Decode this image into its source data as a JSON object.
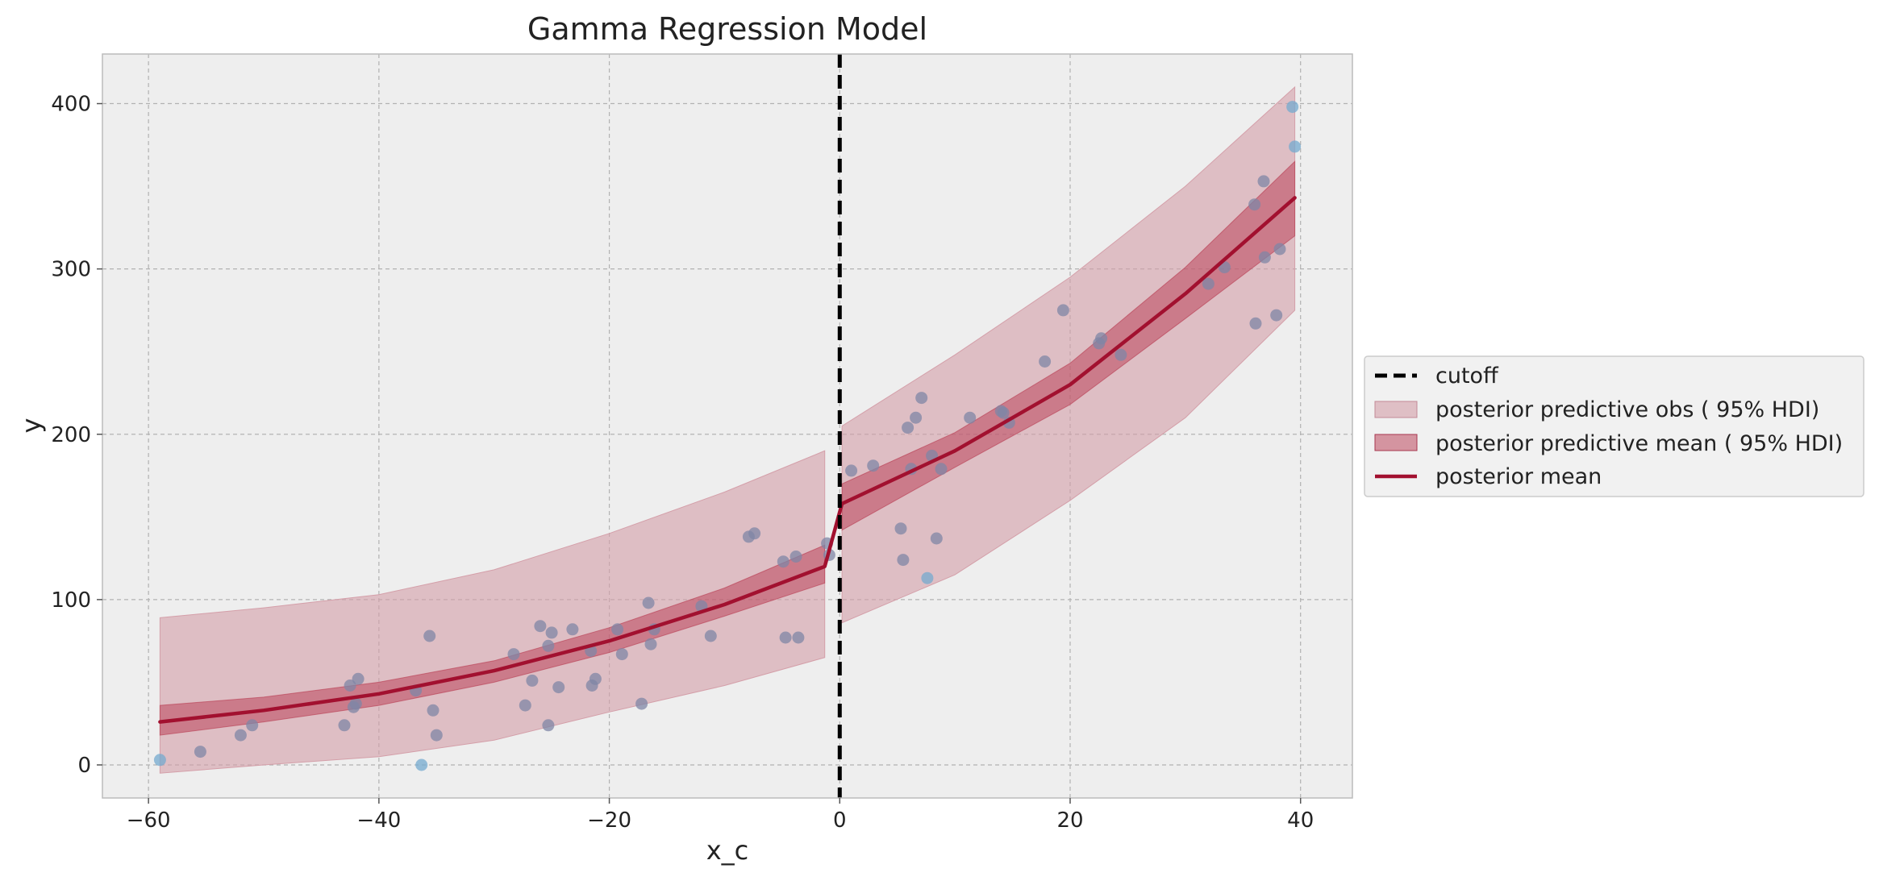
{
  "chart_data": {
    "type": "line",
    "title": "Gamma Regression Model",
    "xlabel": "x_c",
    "ylabel": "y",
    "xlim": [
      -64,
      44.5
    ],
    "ylim": [
      -20,
      430
    ],
    "x_ticks": [
      -60,
      -40,
      -20,
      0,
      20,
      40
    ],
    "y_ticks": [
      0,
      100,
      200,
      300,
      400
    ],
    "x_tick_labels": [
      "−60",
      "−40",
      "−20",
      "0",
      "20",
      "40"
    ],
    "y_tick_labels": [
      "0",
      "100",
      "200",
      "300",
      "400"
    ],
    "grid": true,
    "legend_position": "center-right-outside",
    "cutoff": 0,
    "legend": [
      {
        "key": "cutoff",
        "label": "cutoff",
        "kind": "dashed-line",
        "color": "#000000"
      },
      {
        "key": "obs",
        "label": "posterior predictive obs ( 95% HDI)",
        "kind": "band",
        "color": "#d49fa9"
      },
      {
        "key": "band_mean",
        "label": "posterior predictive mean ( 95% HDI)",
        "kind": "band",
        "color": "#c15a6f"
      },
      {
        "key": "mean",
        "label": "posterior mean",
        "kind": "line",
        "color": "#a2102f"
      }
    ],
    "posterior_mean": {
      "left": {
        "x": [
          -59,
          -50,
          -40,
          -30,
          -20,
          -10,
          -1.3
        ],
        "y": [
          26,
          33,
          43,
          57,
          75,
          97,
          120
        ]
      },
      "right": {
        "x": [
          0.2,
          10,
          20,
          30,
          39.5
        ],
        "y": [
          158,
          190,
          230,
          285,
          343
        ]
      }
    },
    "posterior_mean_hdi": {
      "left": {
        "x": [
          -59,
          -50,
          -40,
          -30,
          -20,
          -10,
          -1.3
        ],
        "lower": [
          18,
          26,
          36,
          50,
          68,
          90,
          110
        ],
        "upper": [
          36,
          41,
          50,
          63,
          83,
          107,
          133
        ]
      },
      "right": {
        "x": [
          0.2,
          10,
          20,
          30,
          39.5
        ],
        "lower": [
          142,
          180,
          218,
          270,
          320
        ],
        "upper": [
          170,
          201,
          243,
          301,
          365
        ]
      }
    },
    "posterior_obs_hdi": {
      "left": {
        "x": [
          -59,
          -50,
          -40,
          -30,
          -20,
          -10,
          -1.3
        ],
        "lower": [
          -5,
          0,
          5,
          15,
          32,
          48,
          65
        ],
        "upper": [
          89,
          95,
          103,
          118,
          140,
          165,
          190
        ]
      },
      "right": {
        "x": [
          0.2,
          10,
          20,
          30,
          39.5
        ],
        "lower": [
          86,
          115,
          160,
          210,
          275
        ],
        "upper": [
          205,
          248,
          295,
          350,
          410
        ]
      }
    },
    "scatter": {
      "points": [
        [
          -59,
          3,
          "teal"
        ],
        [
          -55.5,
          8,
          "dark"
        ],
        [
          -52,
          18,
          "dark"
        ],
        [
          -51,
          24,
          "dark"
        ],
        [
          -43,
          24,
          "dark"
        ],
        [
          -42.5,
          48,
          "dark"
        ],
        [
          -42.2,
          35,
          "dark"
        ],
        [
          -42,
          37,
          "dark"
        ],
        [
          -41.8,
          52,
          "dark"
        ],
        [
          -36.8,
          45,
          "dark"
        ],
        [
          -36.3,
          0,
          "teal"
        ],
        [
          -35.6,
          78,
          "dark"
        ],
        [
          -35.3,
          33,
          "dark"
        ],
        [
          -35,
          18,
          "dark"
        ],
        [
          -28.3,
          67,
          "dark"
        ],
        [
          -27.3,
          36,
          "dark"
        ],
        [
          -26.7,
          51,
          "dark"
        ],
        [
          -26,
          84,
          "dark"
        ],
        [
          -25.3,
          72,
          "dark"
        ],
        [
          -25,
          80,
          "dark"
        ],
        [
          -25.3,
          24,
          "dark"
        ],
        [
          -24.4,
          47,
          "dark"
        ],
        [
          -23.2,
          82,
          "dark"
        ],
        [
          -21.6,
          69,
          "dark"
        ],
        [
          -21.5,
          48,
          "dark"
        ],
        [
          -21.2,
          52,
          "dark"
        ],
        [
          -19.3,
          82,
          "dark"
        ],
        [
          -18.9,
          67,
          "dark"
        ],
        [
          -17.2,
          37,
          "dark"
        ],
        [
          -16.6,
          98,
          "dark"
        ],
        [
          -16.4,
          73,
          "dark"
        ],
        [
          -16.1,
          82,
          "dark"
        ],
        [
          -12,
          96,
          "dark"
        ],
        [
          -11.2,
          78,
          "dark"
        ],
        [
          -7.9,
          138,
          "dark"
        ],
        [
          -7.4,
          140,
          "dark"
        ],
        [
          -4.9,
          123,
          "dark"
        ],
        [
          -4.7,
          77,
          "dark"
        ],
        [
          -3.8,
          126,
          "dark"
        ],
        [
          -3.6,
          77,
          "dark"
        ],
        [
          -1.1,
          134,
          "dark"
        ],
        [
          -0.9,
          127,
          "dark"
        ],
        [
          1,
          178,
          "dark"
        ],
        [
          2.9,
          181,
          "dark"
        ],
        [
          5.3,
          143,
          "dark"
        ],
        [
          5.5,
          124,
          "dark"
        ],
        [
          5.9,
          204,
          "dark"
        ],
        [
          6.2,
          179,
          "dark"
        ],
        [
          6.6,
          210,
          "dark"
        ],
        [
          7.1,
          222,
          "dark"
        ],
        [
          7.6,
          113,
          "teal"
        ],
        [
          8,
          187,
          "dark"
        ],
        [
          8.4,
          137,
          "dark"
        ],
        [
          8.8,
          179,
          "dark"
        ],
        [
          11.3,
          210,
          "dark"
        ],
        [
          14,
          214,
          "dark"
        ],
        [
          14.2,
          213,
          "dark"
        ],
        [
          14.7,
          207,
          "dark"
        ],
        [
          17.8,
          244,
          "dark"
        ],
        [
          19.4,
          275,
          "dark"
        ],
        [
          22.5,
          255,
          "dark"
        ],
        [
          22.7,
          258,
          "dark"
        ],
        [
          24.4,
          248,
          "dark"
        ],
        [
          32,
          291,
          "dark"
        ],
        [
          33.4,
          301,
          "dark"
        ],
        [
          36,
          339,
          "dark"
        ],
        [
          36.1,
          267,
          "dark"
        ],
        [
          36.8,
          353,
          "dark"
        ],
        [
          36.9,
          307,
          "dark"
        ],
        [
          37.9,
          272,
          "dark"
        ],
        [
          38.2,
          312,
          "dark"
        ],
        [
          39.3,
          398,
          "teal"
        ],
        [
          39.5,
          374,
          "teal"
        ]
      ],
      "colors": {
        "dark": "#7f86a6",
        "teal": "#74a9cf"
      }
    },
    "colors": {
      "axes_bg": "#eeeeee",
      "grid": "#b2b2b2",
      "axes_border": "#bcbcbc",
      "obs_band": "#d49fa9",
      "mean_band": "#b8384f",
      "mean_line": "#a2102f",
      "cutoff": "#000000"
    }
  }
}
